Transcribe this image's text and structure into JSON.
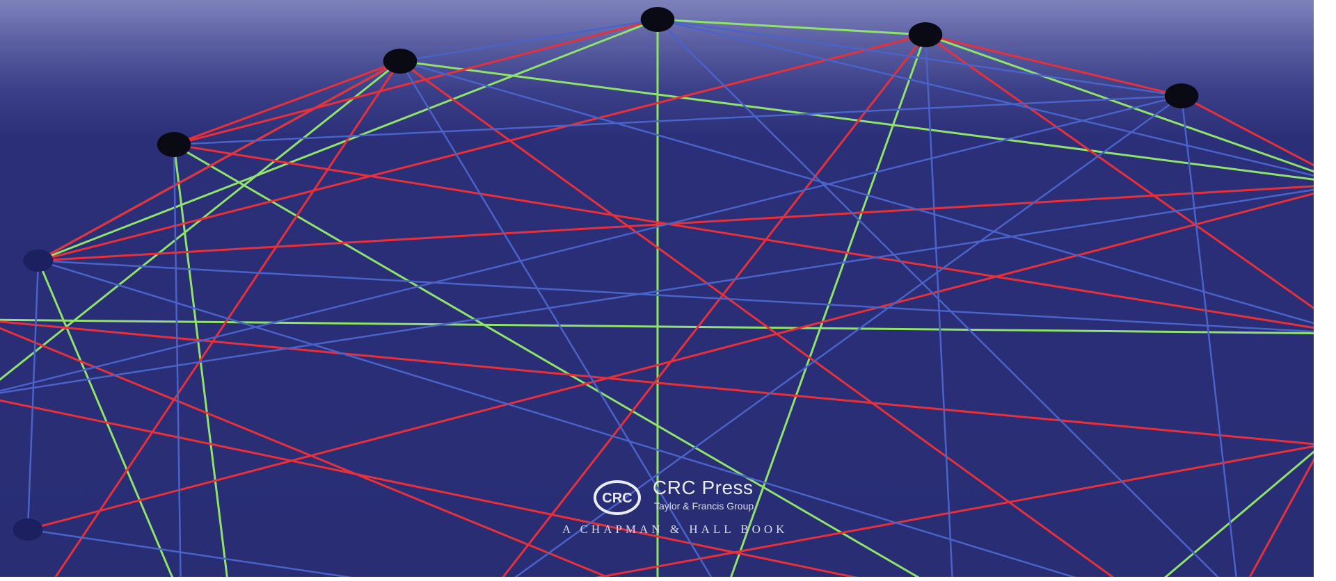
{
  "colors": {
    "background": "#282d74",
    "background_top": "#7e82bb",
    "edge_red": "#e8303a",
    "edge_green": "#8fe36a",
    "edge_blue": "#4a63c8",
    "node": "#0a0a14",
    "text": "#e9ebf5"
  },
  "publisher": {
    "logo_text": "CRC",
    "name": "CRC Press",
    "group": "Taylor & Francis Group",
    "imprint": "A CHAPMAN & HALL BOOK"
  }
}
